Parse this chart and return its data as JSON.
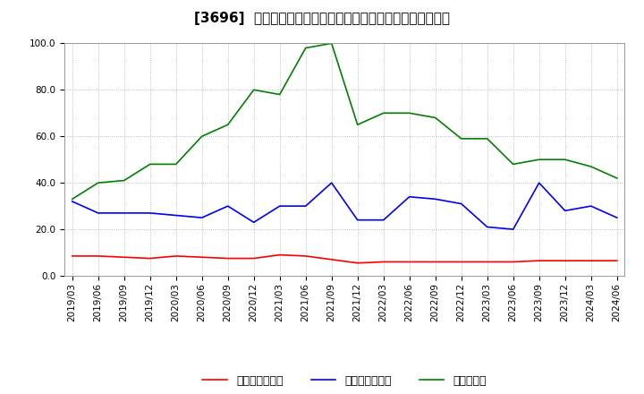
{
  "title": "[3696]  売上債権回転率、買入債務回転率、在庫回転率の推移",
  "xlabel_dates": [
    "2019/03",
    "2019/06",
    "2019/09",
    "2019/12",
    "2020/03",
    "2020/06",
    "2020/09",
    "2020/12",
    "2021/03",
    "2021/06",
    "2021/09",
    "2021/12",
    "2022/03",
    "2022/06",
    "2022/09",
    "2022/12",
    "2023/03",
    "2023/06",
    "2023/09",
    "2023/12",
    "2024/03",
    "2024/06"
  ],
  "red_values": [
    8.5,
    8.5,
    8.0,
    7.5,
    8.5,
    8.0,
    7.5,
    7.5,
    9.0,
    8.5,
    7.0,
    5.5,
    6.0,
    6.0,
    6.0,
    6.0,
    6.0,
    6.0,
    6.5,
    6.5,
    6.5,
    6.5
  ],
  "blue_values": [
    32.0,
    27.0,
    27.0,
    27.0,
    26.0,
    25.0,
    30.0,
    23.0,
    30.0,
    30.0,
    40.0,
    24.0,
    24.0,
    34.0,
    33.0,
    31.0,
    21.0,
    20.0,
    40.0,
    28.0,
    30.0,
    25.0
  ],
  "green_values": [
    33.0,
    40.0,
    41.0,
    48.0,
    48.0,
    60.0,
    65.0,
    80.0,
    78.0,
    98.0,
    100.0,
    65.0,
    70.0,
    70.0,
    68.0,
    59.0,
    59.0,
    48.0,
    50.0,
    50.0,
    47.0,
    42.0
  ],
  "ylim": [
    0.0,
    100.0
  ],
  "yticks": [
    0.0,
    20.0,
    40.0,
    60.0,
    80.0,
    100.0
  ],
  "red_label": "売上債権回転率",
  "blue_label": "買入債務回転率",
  "green_label": "在庫回転率",
  "red_color": "#ff0000",
  "blue_color": "#0000ff",
  "green_color": "#008000",
  "bg_color": "#ffffff",
  "grid_color": "#aaaaaa",
  "title_fontsize": 11,
  "legend_fontsize": 9,
  "tick_fontsize": 7.5
}
